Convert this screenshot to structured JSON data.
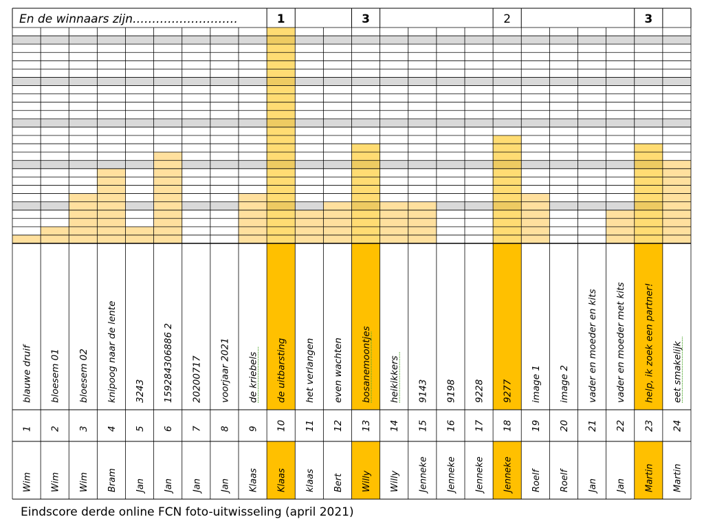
{
  "header": {
    "title": "En de winnaars zijn………………………"
  },
  "caption": "Eindscore derde online FCN foto-uitwisseling (april 2021)",
  "colors": {
    "bar": "#ffe09e",
    "winner": "#ffc000",
    "gray_row": "#d9d9d9",
    "grid": "#000000",
    "title_underline": "#4ea72e"
  },
  "chart_data": {
    "type": "bar",
    "title": "En de winnaars zijn………………………",
    "ylim": [
      0,
      26
    ],
    "gray_gridline_every": 5,
    "categories": [
      "1",
      "2",
      "3",
      "4",
      "5",
      "6",
      "7",
      "8",
      "9",
      "10",
      "11",
      "12",
      "13",
      "14",
      "15",
      "16",
      "17",
      "18",
      "19",
      "20",
      "21",
      "22",
      "23",
      "24"
    ],
    "photo_titles": [
      "blauwe druif",
      "bloesem 01",
      "bloesem 02",
      "knipoog naar de lente",
      "3243",
      "159284306886 2",
      "20200717",
      "voorjaar 2021",
      "de kriebels",
      "de uitbarsting",
      "het verlangen",
      "even wachten",
      "bosanemoontjes",
      "heikikkers",
      "9143",
      "9198",
      "9228",
      "9277",
      "image 1",
      "image 2",
      "vader en moeder en kits",
      "vader en moeder met kits",
      "help, ik zoek een partner!",
      "eet smakelijk"
    ],
    "underlined_titles": [
      9,
      13,
      14,
      24
    ],
    "authors": [
      "Wim",
      "Wim",
      "Wim",
      "Bram",
      "Jan",
      "Jan",
      "Jan",
      "Jan",
      "Klaas",
      "Klaas",
      "klaas",
      "Bert",
      "Willy",
      "Willy",
      "Jenneke",
      "Jenneke",
      "Jenneke",
      "Jenneke",
      "Roelf",
      "Roelf",
      "Jan",
      "Jan",
      "Martin",
      "Martin"
    ],
    "values": [
      1,
      2,
      6,
      9,
      2,
      11,
      0,
      0,
      6,
      26,
      4,
      5,
      12,
      5,
      5,
      0,
      0,
      13,
      6,
      0,
      0,
      4,
      12,
      10
    ],
    "winners": [
      {
        "position": 10,
        "rank": "1"
      },
      {
        "position": 13,
        "rank": "3"
      },
      {
        "position": 18,
        "rank": "2"
      },
      {
        "position": 23,
        "rank": "3"
      }
    ]
  }
}
